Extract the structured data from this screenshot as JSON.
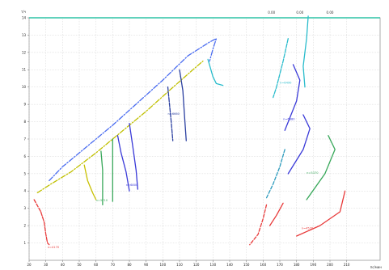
{
  "chart_data": {
    "type": "line",
    "title": "",
    "xlabel": "",
    "ylabel": "",
    "xlim": [
      20,
      230
    ],
    "ylim": [
      0,
      14
    ],
    "grid": true,
    "y_axis_label_top": "т/ч",
    "x_axis_unit_label": "пс/мин",
    "top_axis_labels": [
      "0.00",
      "0.00",
      "0.00"
    ],
    "top_axis_positions": [
      165,
      182,
      200
    ],
    "x_ticks": [
      20,
      30,
      40,
      50,
      60,
      70,
      80,
      90,
      100,
      110,
      120,
      130,
      140,
      150,
      160,
      170,
      180,
      190,
      200,
      210
    ],
    "y_ticks": [
      1,
      2,
      3,
      4,
      5,
      6,
      7,
      8,
      9,
      10,
      11,
      12,
      13,
      14
    ],
    "x_tick_labels": [
      "20",
      "30",
      "40",
      "50",
      "60",
      "70",
      "80",
      "90",
      "100",
      "110",
      "120",
      "130",
      "140",
      "150",
      "160",
      "170",
      "180",
      "190",
      "200",
      "210"
    ],
    "y_tick_labels": [
      "1",
      "2",
      "3",
      "4",
      "5",
      "6",
      "7",
      "8",
      "9",
      "10",
      "11",
      "12",
      "13",
      "14"
    ],
    "series": [
      {
        "color": "#4a6cf0",
        "style": "dashdot",
        "points": [
          [
            32,
            4.6
          ],
          [
            40,
            5.4
          ],
          [
            55,
            6.6
          ],
          [
            70,
            7.8
          ],
          [
            85,
            9.1
          ],
          [
            100,
            10.4
          ],
          [
            115,
            11.8
          ],
          [
            128,
            12.6
          ],
          [
            132,
            12.8
          ],
          [
            130,
            12.2
          ],
          [
            128,
            11.5
          ]
        ]
      },
      {
        "color": "#c0c000",
        "style": "dashdot",
        "points": [
          [
            25,
            3.9
          ],
          [
            33,
            4.4
          ],
          [
            45,
            5.1
          ],
          [
            60,
            6.2
          ],
          [
            75,
            7.4
          ],
          [
            90,
            8.6
          ],
          [
            105,
            9.9
          ],
          [
            118,
            11.0
          ],
          [
            124,
            11.5
          ]
        ]
      },
      {
        "color": "#2abccc",
        "style": "solid",
        "points": [
          [
            127,
            11.6
          ],
          [
            130,
            10.6
          ],
          [
            132,
            10.2
          ],
          [
            136,
            10.1
          ]
        ]
      },
      {
        "color": "#e83a3a",
        "style": "mixed",
        "points": [
          [
            27,
            2.8
          ],
          [
            29,
            2.2
          ],
          [
            30,
            1.5
          ],
          [
            31,
            1.0
          ],
          [
            32,
            0.9
          ]
        ]
      },
      {
        "color": "#e83a3a",
        "style": "dashed",
        "points": [
          [
            23,
            3.5
          ],
          [
            27,
            2.8
          ]
        ]
      },
      {
        "color": "#c8c000",
        "style": "solid",
        "points": [
          [
            53,
            5.5
          ],
          [
            55,
            4.6
          ],
          [
            58,
            3.9
          ],
          [
            60,
            3.5
          ]
        ]
      },
      {
        "color": "#38a85a",
        "style": "solid",
        "points": [
          [
            63,
            6.3
          ],
          [
            64,
            5.2
          ],
          [
            64,
            4.2
          ],
          [
            64,
            3.2
          ]
        ]
      },
      {
        "color": "#38a85a",
        "style": "solid",
        "points": [
          [
            70,
            7.0
          ],
          [
            70,
            5.5
          ],
          [
            70,
            4.3
          ],
          [
            70,
            3.4
          ]
        ]
      },
      {
        "color": "#3a3ad8",
        "style": "solid",
        "points": [
          [
            73,
            7.2
          ],
          [
            75,
            6.2
          ],
          [
            78,
            5.1
          ],
          [
            80,
            4.0
          ]
        ]
      },
      {
        "color": "#3a3ad8",
        "style": "solid",
        "points": [
          [
            80,
            7.9
          ],
          [
            82,
            6.6
          ],
          [
            84,
            5.2
          ],
          [
            85,
            4.1
          ]
        ]
      },
      {
        "color": "#2a3fa0",
        "style": "mixed",
        "points": [
          [
            103,
            10.0
          ],
          [
            104,
            9.0
          ],
          [
            105,
            8.0
          ],
          [
            106,
            6.9
          ]
        ]
      },
      {
        "color": "#2a3fa0",
        "style": "solid",
        "points": [
          [
            110,
            11.0
          ],
          [
            112,
            9.8
          ],
          [
            113,
            8.3
          ],
          [
            114,
            6.9
          ]
        ]
      },
      {
        "color": "#2abccc",
        "style": "mixed",
        "points": [
          [
            175,
            12.8
          ],
          [
            172,
            11.5
          ],
          [
            168,
            10.0
          ],
          [
            166,
            9.4
          ]
        ]
      },
      {
        "color": "#2abccc",
        "style": "solid",
        "points": [
          [
            187,
            14.1
          ],
          [
            186,
            12.8
          ],
          [
            184,
            11.2
          ],
          [
            185,
            10.0
          ]
        ]
      },
      {
        "color": "#3a3ad8",
        "style": "solid",
        "points": [
          [
            178,
            11.3
          ],
          [
            182,
            10.4
          ],
          [
            180,
            9.2
          ],
          [
            173,
            7.5
          ]
        ]
      },
      {
        "color": "#3a3ad8",
        "style": "solid",
        "points": [
          [
            184,
            8.4
          ],
          [
            188,
            7.6
          ],
          [
            184,
            6.4
          ],
          [
            175,
            5.0
          ]
        ]
      },
      {
        "color": "#2a9abc",
        "style": "dashed",
        "points": [
          [
            173,
            6.4
          ],
          [
            170,
            5.4
          ],
          [
            166,
            4.4
          ],
          [
            162,
            3.6
          ]
        ]
      },
      {
        "color": "#38a85a",
        "style": "solid",
        "points": [
          [
            199,
            7.2
          ],
          [
            203,
            6.4
          ],
          [
            197,
            5.0
          ],
          [
            186,
            3.5
          ]
        ]
      },
      {
        "color": "#e83a3a",
        "style": "dashed",
        "points": [
          [
            162,
            3.2
          ],
          [
            160,
            2.4
          ],
          [
            157,
            1.5
          ],
          [
            152,
            0.9
          ]
        ]
      },
      {
        "color": "#e83a3a",
        "style": "solid",
        "points": [
          [
            172,
            3.3
          ],
          [
            168,
            2.6
          ],
          [
            164,
            2.0
          ]
        ]
      },
      {
        "color": "#e83a3a",
        "style": "solid",
        "points": [
          [
            209,
            4.0
          ],
          [
            206,
            2.8
          ],
          [
            194,
            2.0
          ],
          [
            180,
            1.4
          ]
        ]
      }
    ],
    "annotations": [
      {
        "text": "n=4170",
        "x": 31,
        "y": 0.7,
        "color": "#e83a3a"
      },
      {
        "text": "n=5710",
        "x": 60,
        "y": 3.4,
        "color": "#38a85a"
      },
      {
        "text": "n=6800",
        "x": 78,
        "y": 4.3,
        "color": "#3a3ad8"
      },
      {
        "text": "n=6660",
        "x": 103,
        "y": 8.4,
        "color": "#2a3fa0"
      },
      {
        "text": "n=6490",
        "x": 170,
        "y": 10.2,
        "color": "#2abccc"
      },
      {
        "text": "n=6380",
        "x": 172,
        "y": 8.1,
        "color": "#3a3ad8"
      },
      {
        "text": "n=5370",
        "x": 186,
        "y": 5.0,
        "color": "#38a85a"
      },
      {
        "text": "n=4570",
        "x": 183,
        "y": 1.8,
        "color": "#e83a3a"
      }
    ]
  }
}
